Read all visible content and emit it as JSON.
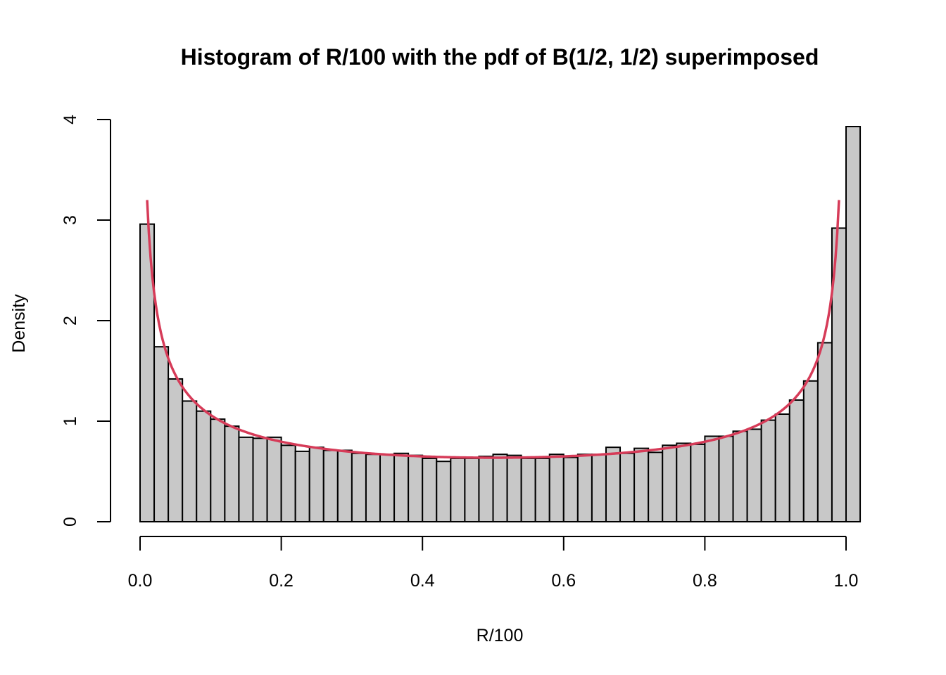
{
  "chart_data": {
    "type": "bar",
    "title": "Histogram of R/100 with the pdf of B(1/2, 1/2) superimposed",
    "xlabel": "R/100",
    "ylabel": "Density",
    "xlim": [
      0.0,
      1.02
    ],
    "ylim": [
      0,
      4
    ],
    "x_ticks": [
      "0.0",
      "0.2",
      "0.4",
      "0.6",
      "0.8",
      "1.0"
    ],
    "y_ticks": [
      "0",
      "1",
      "2",
      "3",
      "4"
    ],
    "bin_width": 0.02,
    "bin_start": 0.0,
    "series": [
      {
        "type": "histogram",
        "values": [
          2.96,
          1.74,
          1.42,
          1.2,
          1.1,
          1.02,
          0.95,
          0.84,
          0.83,
          0.84,
          0.76,
          0.7,
          0.74,
          0.71,
          0.71,
          0.68,
          0.67,
          0.67,
          0.68,
          0.66,
          0.63,
          0.6,
          0.63,
          0.63,
          0.65,
          0.67,
          0.66,
          0.63,
          0.63,
          0.67,
          0.64,
          0.67,
          0.67,
          0.74,
          0.68,
          0.73,
          0.69,
          0.76,
          0.78,
          0.77,
          0.85,
          0.85,
          0.9,
          0.92,
          1.01,
          1.07,
          1.21,
          1.4,
          1.78,
          2.92,
          3.93
        ]
      },
      {
        "type": "line",
        "function": "dbeta(x, 0.5, 0.5)",
        "x_range": [
          0.01,
          0.99
        ]
      }
    ],
    "colors": {
      "bar_fill": "#c8c8c8",
      "bar_stroke": "#000000",
      "curve": "#d63b58"
    }
  }
}
